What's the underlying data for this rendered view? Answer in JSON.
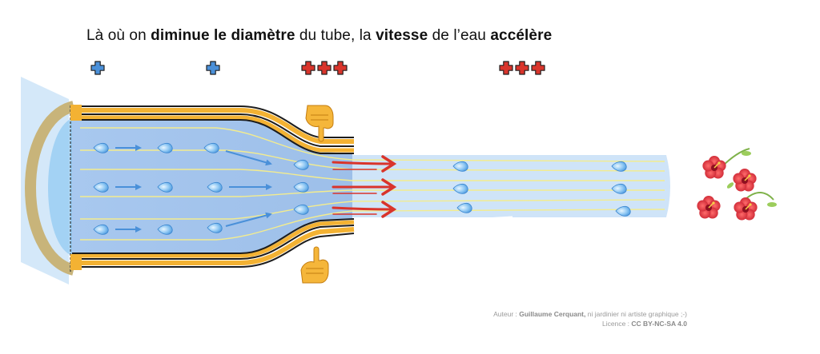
{
  "title": {
    "parts": [
      {
        "text": "Là où on ",
        "bold": false
      },
      {
        "text": "diminue le diamètre",
        "bold": true
      },
      {
        "text": " du tube, la ",
        "bold": false
      },
      {
        "text": "vitesse",
        "bold": true
      },
      {
        "text": " de l’eau ",
        "bold": false
      },
      {
        "text": "accélère",
        "bold": true
      }
    ]
  },
  "pressure_markers": [
    {
      "symbol": "plus",
      "count": 1,
      "color": "#4a90d9"
    },
    {
      "symbol": "plus",
      "count": 1,
      "color": "#4a90d9"
    },
    {
      "symbol": "plus",
      "count": 3,
      "color": "#d9342b"
    },
    {
      "symbol": "plus",
      "count": 3,
      "color": "#d9342b"
    }
  ],
  "icons": [
    "pointing-down-hand-icon",
    "pointing-up-hand-icon",
    "hibiscus-flower-icon",
    "water-droplet-icon"
  ],
  "colors": {
    "water": "#cfe4f8",
    "water_wide": "#a9c9ef",
    "pipe_stripe": "#f3b233",
    "pipe_dark": "#1c1c1c",
    "slow_arrow": "#4a90d9",
    "fast_arrow": "#d9342b",
    "streamline": "#f3ec8e"
  },
  "credit": {
    "author_label": "Auteur : ",
    "author_name": "Guillaume Cerquant,",
    "author_note": " ni jardinier ni artiste graphique ;-)",
    "license_label": "Licence :  ",
    "license_value": "CC BY-NC-SA 4.0"
  }
}
